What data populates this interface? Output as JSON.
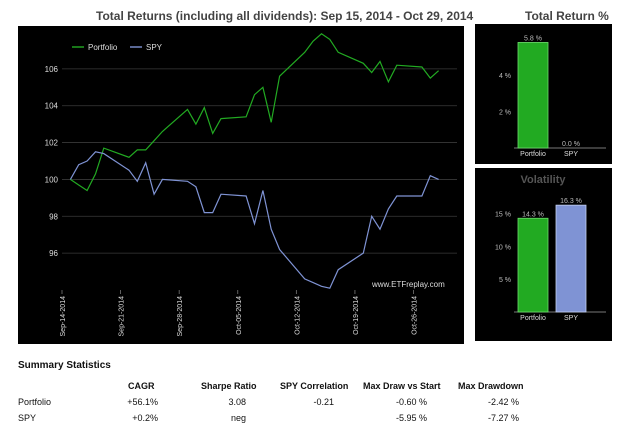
{
  "main_title": "Total Returns (including all dividends): Sep 15, 2014 - Oct 29, 2014",
  "right_title": "Total Return %",
  "volatility_title": "Volatility",
  "watermark": "www.ETFreplay.com",
  "colors": {
    "portfolio": "#22aa22",
    "spy": "#7f93d4",
    "panel": "#000000"
  },
  "chart_data": [
    {
      "type": "line",
      "title": "Total Returns (including all dividends): Sep 15, 2014 - Oct 29, 2014",
      "ylim": [
        94,
        108
      ],
      "yticks": [
        96,
        98,
        100,
        102,
        104,
        106
      ],
      "xticks": [
        "Sep-14-2014",
        "Sep-21-2014",
        "Sep-28-2014",
        "Oct-05-2014",
        "Oct-12-2014",
        "Oct-19-2014",
        "Oct-26-2014"
      ],
      "legend": "top-left",
      "series": [
        {
          "name": "Portfolio",
          "x": [
            "2014-09-15",
            "2014-09-16",
            "2014-09-17",
            "2014-09-18",
            "2014-09-19",
            "2014-09-22",
            "2014-09-23",
            "2014-09-24",
            "2014-09-25",
            "2014-09-26",
            "2014-09-29",
            "2014-09-30",
            "2014-10-01",
            "2014-10-02",
            "2014-10-03",
            "2014-10-06",
            "2014-10-07",
            "2014-10-08",
            "2014-10-09",
            "2014-10-10",
            "2014-10-13",
            "2014-10-14",
            "2014-10-15",
            "2014-10-16",
            "2014-10-17",
            "2014-10-20",
            "2014-10-21",
            "2014-10-22",
            "2014-10-23",
            "2014-10-24",
            "2014-10-27",
            "2014-10-28",
            "2014-10-29"
          ],
          "values": [
            100.0,
            99.7,
            99.4,
            100.3,
            101.7,
            101.2,
            101.6,
            101.6,
            102.1,
            102.6,
            103.8,
            103.0,
            103.9,
            102.5,
            103.3,
            103.4,
            104.6,
            105.0,
            103.1,
            105.6,
            106.9,
            107.5,
            107.9,
            107.6,
            106.9,
            106.3,
            105.8,
            106.4,
            105.3,
            106.2,
            106.1,
            105.5,
            105.9
          ]
        },
        {
          "name": "SPY",
          "x": [
            "2014-09-15",
            "2014-09-16",
            "2014-09-17",
            "2014-09-18",
            "2014-09-19",
            "2014-09-22",
            "2014-09-23",
            "2014-09-24",
            "2014-09-25",
            "2014-09-26",
            "2014-09-29",
            "2014-09-30",
            "2014-10-01",
            "2014-10-02",
            "2014-10-03",
            "2014-10-06",
            "2014-10-07",
            "2014-10-08",
            "2014-10-09",
            "2014-10-10",
            "2014-10-13",
            "2014-10-14",
            "2014-10-15",
            "2014-10-16",
            "2014-10-17",
            "2014-10-20",
            "2014-10-21",
            "2014-10-22",
            "2014-10-23",
            "2014-10-24",
            "2014-10-27",
            "2014-10-28",
            "2014-10-29"
          ],
          "values": [
            100.0,
            100.8,
            101.0,
            101.5,
            101.4,
            100.5,
            99.9,
            100.9,
            99.2,
            100.0,
            99.9,
            99.6,
            98.2,
            98.2,
            99.2,
            99.1,
            97.6,
            99.4,
            97.3,
            96.2,
            94.6,
            94.4,
            94.2,
            94.1,
            95.1,
            96.0,
            98.0,
            97.3,
            98.4,
            99.1,
            99.1,
            100.2,
            100.0
          ]
        }
      ]
    },
    {
      "type": "bar",
      "title": "Total Return %",
      "categories": [
        "Portfolio",
        "SPY"
      ],
      "values": [
        5.8,
        0.0
      ],
      "value_labels": [
        "5.8 %",
        "0.0 %"
      ],
      "ylim": [
        0,
        6.1
      ],
      "yticks": [
        2,
        4
      ],
      "ytick_labels": [
        "2 %",
        "4 %"
      ]
    },
    {
      "type": "bar",
      "title": "Volatility",
      "categories": [
        "Portfolio",
        "SPY"
      ],
      "values": [
        14.3,
        16.3
      ],
      "value_labels": [
        "14.3 %",
        "16.3 %"
      ],
      "ylim": [
        0,
        18
      ],
      "yticks": [
        5,
        10,
        15
      ],
      "ytick_labels": [
        "5 %",
        "10 %",
        "15 %"
      ]
    }
  ],
  "stats": {
    "title": "Summary Statistics",
    "headers": [
      "CAGR",
      "Sharpe Ratio",
      "SPY Correlation",
      "Max Draw vs Start",
      "Max Drawdown"
    ],
    "rows": [
      {
        "name": "Portfolio",
        "cells": [
          "+56.1%",
          "3.08",
          "-0.21",
          "-0.60 %",
          "-2.42 %"
        ]
      },
      {
        "name": "SPY",
        "cells": [
          "+0.2%",
          "neg",
          "",
          "-5.95 %",
          "-7.27 %"
        ]
      }
    ]
  }
}
